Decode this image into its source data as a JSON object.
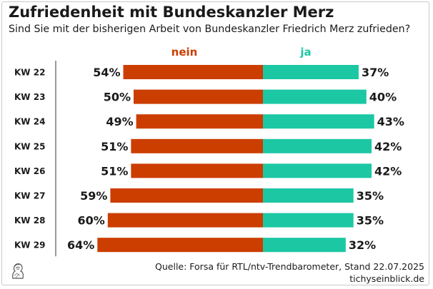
{
  "title": "Zufriedenheit mit Bundeskanzler Merz",
  "subtitle": "Sind Sie mit der bisherigen Arbeit von Bundeskanzler Friedrich Merz zufrieden?",
  "source": "Quelle: Forsa für RTL/ntv-Trendbarometer, Stand 22.07.2025",
  "brand": "tichyseinblick.de",
  "logo_icon": "bust-portrait-logo-icon",
  "colors": {
    "nein": "#cc3d00",
    "ja": "#1cc7a4",
    "text": "#1a1a1a"
  },
  "chart_data": {
    "type": "bar",
    "orientation": "horizontal-diverging",
    "categories": [
      "KW 22",
      "KW 23",
      "KW 24",
      "KW 25",
      "KW 26",
      "KW 27",
      "KW 28",
      "KW 29"
    ],
    "series": [
      {
        "name": "nein",
        "values": [
          54,
          50,
          49,
          51,
          51,
          59,
          60,
          64
        ],
        "labels": [
          "54%",
          "50%",
          "49%",
          "51%",
          "51%",
          "59%",
          "60%",
          "64%"
        ]
      },
      {
        "name": "ja",
        "values": [
          37,
          40,
          43,
          42,
          42,
          35,
          35,
          32
        ],
        "labels": [
          "37%",
          "40%",
          "43%",
          "42%",
          "42%",
          "35%",
          "35%",
          "32%"
        ]
      }
    ],
    "unit": "%",
    "legend_position": "top-center"
  }
}
